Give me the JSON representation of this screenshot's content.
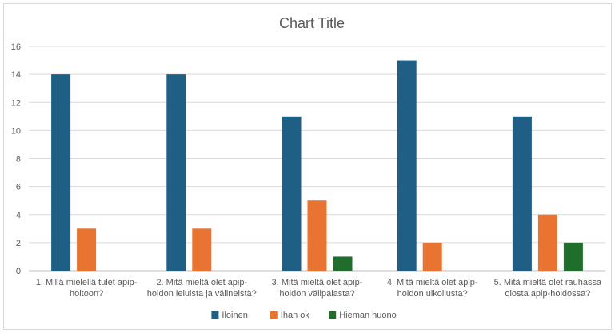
{
  "chart_data": {
    "type": "bar",
    "title": "Chart Title",
    "categories": [
      [
        "1. Millä mielellä tulet apip-",
        "hoitoon?"
      ],
      [
        "2. Mitä mieltä olet apip-",
        "hoidon leluista ja välineistä?"
      ],
      [
        "3. Mitä mieltä olet apip-",
        "hoidon välipalasta?"
      ],
      [
        "4. Mitä mieltä olet apip-",
        "hoidon ulkoilusta?"
      ],
      [
        "5. Mitä mieltä olet rauhassa",
        "olosta apip-hoidossa?"
      ]
    ],
    "series": [
      {
        "name": "Iloinen",
        "color": "#1f5f86",
        "values": [
          14,
          14,
          11,
          15,
          11
        ]
      },
      {
        "name": "Ihan ok",
        "color": "#e97431",
        "values": [
          3,
          3,
          5,
          2,
          4
        ]
      },
      {
        "name": "Hieman huono",
        "color": "#1f6e2c",
        "values": [
          0,
          0,
          1,
          0,
          2
        ]
      }
    ],
    "ylim": [
      0,
      16
    ],
    "yticks": [
      0,
      2,
      4,
      6,
      8,
      10,
      12,
      14,
      16
    ],
    "grid": true,
    "legend": "bottom"
  }
}
